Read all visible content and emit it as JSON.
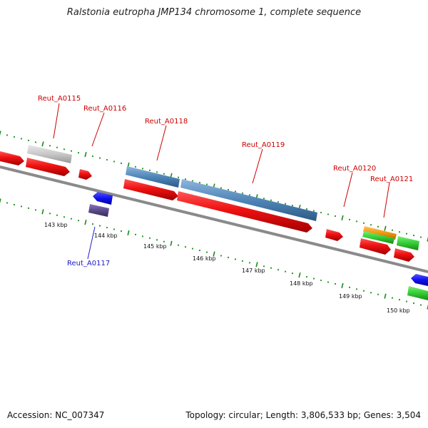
{
  "title": "Ralstonia eutropha JMP134 chromosome 1, complete sequence",
  "footer": {
    "accession": "Accession: NC_007347",
    "summary": "Topology: circular; Length: 3,806,533 bp; Genes: 3,504"
  },
  "colors": {
    "backbone": "#8a8a8a",
    "cds_red": "#ee1111",
    "cds_blue": "#4f86b8",
    "gray": "#c8c8c8",
    "blue": "#1010ee",
    "purple": "#5a4a8a",
    "orange": "#f09a10",
    "green": "#33cc33",
    "tick": "#1a8a1a",
    "label_red": "#cc0000",
    "label_blue": "#1a1acc"
  },
  "gene_labels": [
    {
      "text": "Reut_A0115"
    },
    {
      "text": "Reut_A0116"
    },
    {
      "text": "Reut_A0117"
    },
    {
      "text": "Reut_A0118"
    },
    {
      "text": "Reut_A0119"
    },
    {
      "text": "Reut_A0120"
    },
    {
      "text": "Reut_A0121"
    }
  ],
  "kbp_labels": [
    "143 kbp",
    "144 kbp",
    "145 kbp",
    "146 kbp",
    "147 kbp",
    "148 kbp",
    "149 kbp",
    "150 kbp"
  ]
}
